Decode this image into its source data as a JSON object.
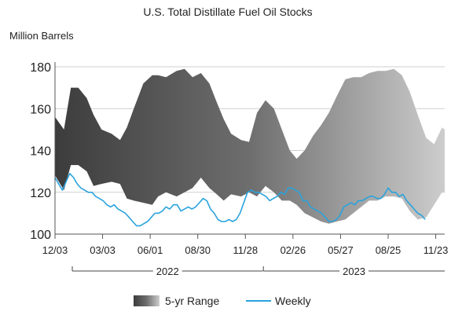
{
  "chart_data": {
    "type": "area",
    "title": "U.S. Total Distillate Fuel Oil Stocks",
    "ylabel": "Million Barrels",
    "xlabel": "",
    "ylim": [
      100,
      180
    ],
    "yticks": [
      100,
      120,
      140,
      160,
      180
    ],
    "xlim": [
      "2021-12-03",
      "2023-12-10"
    ],
    "x_ticks": [
      {
        "date": "2021-12-03",
        "label": "12/03"
      },
      {
        "date": "2022-03-03",
        "label": "03/03"
      },
      {
        "date": "2022-06-01",
        "label": "06/01"
      },
      {
        "date": "2022-08-30",
        "label": "08/30"
      },
      {
        "date": "2022-11-28",
        "label": "11/28"
      },
      {
        "date": "2023-02-26",
        "label": "02/26"
      },
      {
        "date": "2023-05-27",
        "label": "05/27"
      },
      {
        "date": "2023-08-25",
        "label": "08/25"
      },
      {
        "date": "2023-11-23",
        "label": "11/23"
      }
    ],
    "years": [
      {
        "label": "2022",
        "start": "2022-01-01",
        "end": "2022-12-31"
      },
      {
        "label": "2023",
        "start": "2023-01-01",
        "end": "2023-12-31"
      }
    ],
    "grid": true,
    "legend_position": "bottom",
    "series": [
      {
        "name": "5-yr Range",
        "kind": "range",
        "x": [
          "2021-12-03",
          "2021-12-20",
          "2022-01-02",
          "2022-01-16",
          "2022-02-01",
          "2022-02-14",
          "2022-03-01",
          "2022-03-20",
          "2022-04-05",
          "2022-04-18",
          "2022-05-01",
          "2022-05-19",
          "2022-06-05",
          "2022-06-16",
          "2022-07-01",
          "2022-07-21",
          "2022-08-05",
          "2022-08-20",
          "2022-09-05",
          "2022-09-21",
          "2022-10-05",
          "2022-10-18",
          "2022-11-01",
          "2022-11-20",
          "2022-12-05",
          "2022-12-20",
          "2023-01-05",
          "2023-01-21",
          "2023-02-05",
          "2023-02-20",
          "2023-03-05",
          "2023-03-20",
          "2023-04-05",
          "2023-04-20",
          "2023-05-05",
          "2023-05-20",
          "2023-06-05",
          "2023-06-20",
          "2023-07-05",
          "2023-07-20",
          "2023-08-05",
          "2023-08-20",
          "2023-09-05",
          "2023-09-20",
          "2023-10-05",
          "2023-10-20",
          "2023-11-05",
          "2023-11-20",
          "2023-12-05",
          "2023-12-10"
        ],
        "upper": [
          156,
          150,
          170,
          170,
          165,
          157,
          150,
          148,
          145,
          151,
          160,
          172,
          176,
          176,
          175,
          178,
          179,
          175,
          177,
          172,
          163,
          155,
          148,
          145,
          144,
          158,
          164,
          160,
          150,
          140,
          136,
          140,
          147,
          152,
          158,
          166,
          174,
          175,
          175,
          177,
          178,
          178,
          179,
          176,
          168,
          157,
          146,
          143,
          151,
          150
        ],
        "lower": [
          128,
          121,
          133,
          133,
          130,
          123,
          124,
          125,
          124,
          117,
          116,
          115,
          114,
          118,
          120,
          118,
          120,
          122,
          127,
          122,
          119,
          116,
          119,
          118,
          120,
          118,
          123,
          120,
          116,
          116,
          114,
          110,
          108,
          106,
          105,
          106,
          107,
          110,
          113,
          116,
          116,
          118,
          118,
          117,
          111,
          107,
          108,
          114,
          120,
          120
        ]
      },
      {
        "name": "Weekly",
        "kind": "line",
        "color": "#29a3dd",
        "x": [
          "2021-12-03",
          "2021-12-10",
          "2021-12-17",
          "2021-12-24",
          "2021-12-31",
          "2022-01-07",
          "2022-01-14",
          "2022-01-21",
          "2022-01-28",
          "2022-02-04",
          "2022-02-11",
          "2022-02-18",
          "2022-02-25",
          "2022-03-04",
          "2022-03-11",
          "2022-03-18",
          "2022-03-25",
          "2022-04-01",
          "2022-04-08",
          "2022-04-15",
          "2022-04-22",
          "2022-04-29",
          "2022-05-06",
          "2022-05-13",
          "2022-05-20",
          "2022-05-27",
          "2022-06-03",
          "2022-06-10",
          "2022-06-17",
          "2022-06-24",
          "2022-07-01",
          "2022-07-08",
          "2022-07-15",
          "2022-07-22",
          "2022-07-29",
          "2022-08-05",
          "2022-08-12",
          "2022-08-19",
          "2022-08-26",
          "2022-09-02",
          "2022-09-09",
          "2022-09-16",
          "2022-09-23",
          "2022-09-30",
          "2022-10-07",
          "2022-10-14",
          "2022-10-21",
          "2022-10-28",
          "2022-11-04",
          "2022-11-11",
          "2022-11-18",
          "2022-11-25",
          "2022-12-02",
          "2022-12-09",
          "2022-12-16",
          "2022-12-23",
          "2022-12-30",
          "2023-01-06",
          "2023-01-13",
          "2023-01-20",
          "2023-01-27",
          "2023-02-03",
          "2023-02-10",
          "2023-02-17",
          "2023-02-24",
          "2023-03-03",
          "2023-03-10",
          "2023-03-17",
          "2023-03-24",
          "2023-03-31",
          "2023-04-07",
          "2023-04-14",
          "2023-04-21",
          "2023-04-28",
          "2023-05-05",
          "2023-05-12",
          "2023-05-19",
          "2023-05-26",
          "2023-06-02",
          "2023-06-09",
          "2023-06-16",
          "2023-06-23",
          "2023-06-30",
          "2023-07-07",
          "2023-07-14",
          "2023-07-21",
          "2023-07-28",
          "2023-08-04",
          "2023-08-11",
          "2023-08-18",
          "2023-08-25",
          "2023-09-01",
          "2023-09-08",
          "2023-09-15",
          "2023-09-22",
          "2023-09-29",
          "2023-10-06",
          "2023-10-13",
          "2023-10-20",
          "2023-10-27",
          "2023-11-03"
        ],
        "values": [
          127,
          124,
          121,
          125,
          129,
          127,
          124,
          122,
          121,
          120,
          120,
          118,
          117,
          116,
          114,
          113,
          114,
          112,
          111,
          110,
          108,
          106,
          104,
          104,
          105,
          106,
          108,
          110,
          110,
          111,
          113,
          112,
          114,
          114,
          111,
          112,
          113,
          112,
          113,
          115,
          117,
          116,
          112,
          110,
          107,
          106,
          106,
          107,
          106,
          107,
          110,
          115,
          120,
          121,
          120,
          120,
          119,
          118,
          116,
          117,
          118,
          120,
          119,
          122,
          122,
          121,
          120,
          116,
          116,
          113,
          112,
          111,
          110,
          108,
          106,
          106,
          107,
          109,
          113,
          114,
          115,
          114,
          116,
          116,
          117,
          118,
          118,
          117,
          117,
          119,
          122,
          120,
          120,
          118,
          119,
          116,
          114,
          112,
          110,
          109,
          107
        ]
      }
    ]
  }
}
